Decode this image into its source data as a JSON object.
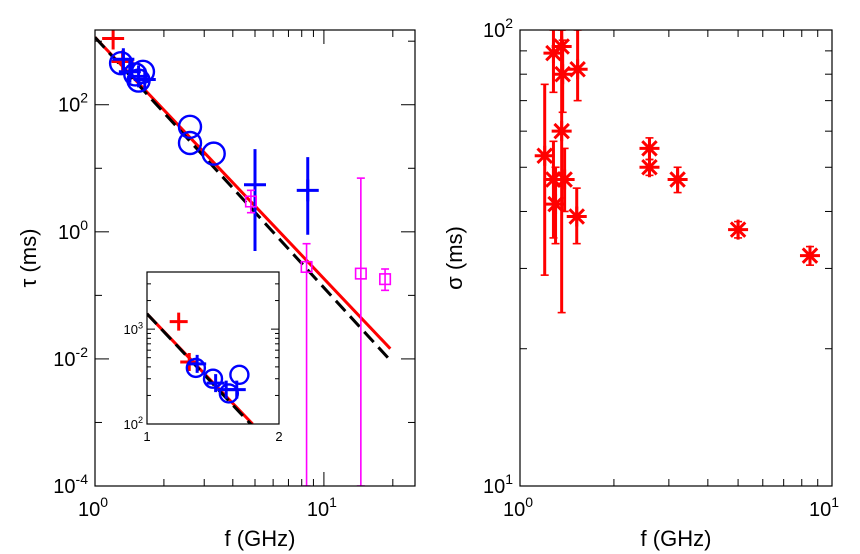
{
  "chart_data": [
    {
      "type": "scatter",
      "panel": "left",
      "xlabel": "f (GHz)",
      "ylabel": "τ (ms)",
      "xscale": "log",
      "yscale": "log",
      "xlim": [
        1,
        25
      ],
      "ylim": [
        0.0001,
        1500
      ],
      "xtick_labels": [
        {
          "base": "10",
          "exp": "0"
        },
        {
          "base": "10",
          "exp": "1"
        }
      ],
      "ytick_labels": [
        {
          "base": "10",
          "exp": "2"
        },
        {
          "base": "10",
          "exp": "0"
        },
        {
          "base": "10",
          "exp": "-2"
        },
        {
          "base": "10",
          "exp": "-4"
        }
      ],
      "series": [
        {
          "name": "red crosses",
          "color": "#ff0000",
          "marker": "plus",
          "points": [
            {
              "x": 1.2,
              "y": 1100
            },
            {
              "x": 1.32,
              "y": 480
            }
          ]
        },
        {
          "name": "blue circles",
          "color": "#0000ff",
          "marker": "circle",
          "points": [
            {
              "x": 1.3,
              "y": 450
            },
            {
              "x": 1.5,
              "y": 300
            },
            {
              "x": 1.55,
              "y": 240
            },
            {
              "x": 1.62,
              "y": 330
            },
            {
              "x": 2.6,
              "y": 45
            },
            {
              "x": 2.6,
              "y": 25
            },
            {
              "x": 3.3,
              "y": 17
            }
          ]
        },
        {
          "name": "blue crosses",
          "color": "#0000ff",
          "marker": "plus",
          "points": [
            {
              "x": 1.33,
              "y": 520,
              "lo": 400,
              "hi": 700
            },
            {
              "x": 1.42,
              "y": 330,
              "lo": 250,
              "hi": 450
            },
            {
              "x": 1.55,
              "y": 280
            },
            {
              "x": 1.65,
              "y": 250
            },
            {
              "x": 5.0,
              "y": 5.5,
              "lo": 0.5,
              "hi": 20
            },
            {
              "x": 8.5,
              "y": 4.5,
              "lo": 0.9,
              "hi": 15
            }
          ]
        },
        {
          "name": "magenta squares",
          "color": "#ff00ff",
          "marker": "square",
          "points": [
            {
              "x": 4.8,
              "y": 3.0,
              "lo": 2.0,
              "hi": 4.5
            },
            {
              "x": 8.4,
              "y": 0.28,
              "lo": 0.0001,
              "hi": 0.65
            },
            {
              "x": 14.5,
              "y": 0.22,
              "lo": 0.0001,
              "hi": 7
            },
            {
              "x": 18.5,
              "y": 0.18,
              "lo": 0.12,
              "hi": 0.26
            }
          ]
        }
      ],
      "fits": [
        {
          "name": "red fit",
          "color": "#ff0000",
          "style": "solid",
          "x": [
            1.0,
            19.5
          ],
          "y": [
            1150,
            0.0145
          ]
        },
        {
          "name": "black fit",
          "color": "#000000",
          "style": "dashed",
          "x": [
            1.0,
            19.5
          ],
          "y": [
            1150,
            0.0095
          ]
        }
      ],
      "inset": {
        "xscale": "linear",
        "yscale": "log",
        "xlim": [
          1,
          2
        ],
        "ylim": [
          100,
          4000
        ],
        "xtick_labels": [
          "1",
          "2"
        ],
        "ytick_labels": [
          {
            "base": "10",
            "exp": "3"
          },
          {
            "base": "10",
            "exp": "2"
          }
        ],
        "series": [
          {
            "name": "red crosses",
            "color": "#ff0000",
            "marker": "plus",
            "points": [
              {
                "x": 1.24,
                "y": 1200
              },
              {
                "x": 1.32,
                "y": 450
              }
            ]
          },
          {
            "name": "blue crosses",
            "color": "#0000ff",
            "marker": "plus",
            "points": [
              {
                "x": 1.38,
                "y": 430
              },
              {
                "x": 1.52,
                "y": 270
              },
              {
                "x": 1.6,
                "y": 230
              },
              {
                "x": 1.68,
                "y": 230
              }
            ]
          },
          {
            "name": "blue circles",
            "color": "#0000ff",
            "marker": "circle",
            "points": [
              {
                "x": 1.37,
                "y": 390
              },
              {
                "x": 1.5,
                "y": 300
              },
              {
                "x": 1.62,
                "y": 210
              },
              {
                "x": 1.7,
                "y": 330
              }
            ]
          }
        ],
        "fits": [
          {
            "name": "red fit",
            "color": "#ff0000",
            "style": "solid",
            "x": [
              1.0,
              1.8
            ],
            "y": [
              1450,
              100
            ]
          },
          {
            "name": "black fit",
            "color": "#000000",
            "style": "dashed",
            "x": [
              1.0,
              1.8
            ],
            "y": [
              1450,
              95
            ]
          }
        ]
      }
    },
    {
      "type": "scatter",
      "panel": "right",
      "xlabel": "f (GHz)",
      "ylabel": "σ (ms)",
      "xscale": "log",
      "yscale": "log",
      "xlim": [
        1,
        10
      ],
      "ylim": [
        10,
        100
      ],
      "xtick_labels": [
        {
          "base": "10",
          "exp": "0"
        },
        {
          "base": "10",
          "exp": "1"
        }
      ],
      "ytick_labels": [
        {
          "base": "10",
          "exp": "2"
        },
        {
          "base": "10",
          "exp": "1"
        }
      ],
      "series": [
        {
          "name": "red asterisks",
          "color": "#ff0000",
          "marker": "asterisk",
          "points": [
            {
              "x": 1.2,
              "y": 53,
              "lo": 29,
              "hi": 76
            },
            {
              "x": 1.28,
              "y": 89,
              "lo": 73,
              "hi": 100
            },
            {
              "x": 1.28,
              "y": 47,
              "lo": 35,
              "hi": 57
            },
            {
              "x": 1.3,
              "y": 41.5,
              "lo": 34,
              "hi": 50
            },
            {
              "x": 1.36,
              "y": 92,
              "lo": 80,
              "hi": 100
            },
            {
              "x": 1.36,
              "y": 60,
              "lo": 24,
              "hi": 100
            },
            {
              "x": 1.37,
              "y": 80,
              "lo": 66,
              "hi": 95
            },
            {
              "x": 1.39,
              "y": 47,
              "lo": 40,
              "hi": 55
            },
            {
              "x": 1.52,
              "y": 39,
              "lo": 34,
              "hi": 45
            },
            {
              "x": 1.53,
              "y": 82,
              "lo": 70,
              "hi": 100
            },
            {
              "x": 2.6,
              "y": 55,
              "lo": 52,
              "hi": 58
            },
            {
              "x": 2.6,
              "y": 50,
              "lo": 48,
              "hi": 52
            },
            {
              "x": 3.2,
              "y": 47,
              "lo": 44,
              "hi": 50
            },
            {
              "x": 5.0,
              "y": 36.5,
              "lo": 35,
              "hi": 38
            },
            {
              "x": 8.5,
              "y": 32,
              "lo": 30.5,
              "hi": 33.5
            }
          ]
        }
      ]
    }
  ]
}
